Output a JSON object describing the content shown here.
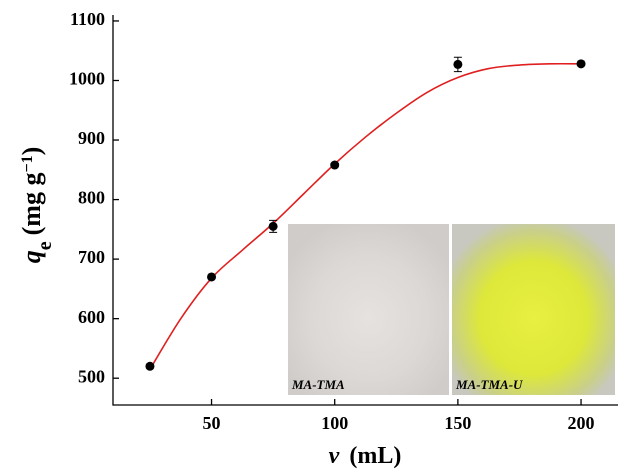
{
  "chart_data": {
    "type": "scatter",
    "x_label": {
      "symbol": "v",
      "unit": "(mL)"
    },
    "y_label": {
      "symbol": "q",
      "subscript": "e",
      "unit": "(mg g",
      "superscript": "−1",
      "close": ")"
    },
    "xlim": [
      10,
      215
    ],
    "xticks": [
      50,
      100,
      150,
      200
    ],
    "ylim": [
      455,
      1110
    ],
    "yticks": [
      500,
      600,
      700,
      800,
      900,
      1000,
      1100
    ],
    "series": [
      {
        "x": [
          25,
          50,
          75,
          100,
          150,
          200
        ],
        "values": [
          520,
          670,
          755,
          858,
          1027,
          1028
        ],
        "errors": [
          3,
          3,
          10,
          3,
          12,
          3
        ],
        "color": "#000000"
      }
    ],
    "fit": {
      "color": "#e02020",
      "x": [
        25,
        37.5,
        50,
        62.5,
        75,
        87.5,
        100,
        112.5,
        125,
        137.5,
        150,
        162.5,
        175,
        187.5,
        200
      ],
      "values": [
        515,
        600,
        668,
        715,
        760,
        810,
        860,
        905,
        945,
        980,
        1005,
        1020,
        1026,
        1028,
        1028
      ]
    },
    "insets": [
      "MA-TMA",
      "MA-TMA-U"
    ]
  }
}
